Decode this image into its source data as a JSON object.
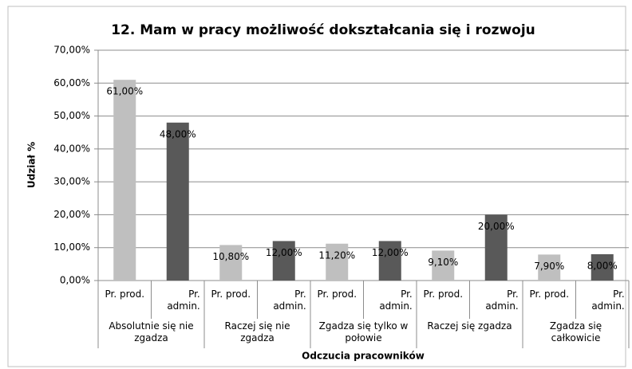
{
  "chart_data": {
    "type": "bar",
    "title": "12. Mam w pracy możliwość dokształcania się i rozwoju",
    "x_label": "Odczucia pracowników",
    "y_label": "Udział %",
    "categories": [
      "Absolutnie się nie zgadza",
      "Raczej się nie zgadza",
      "Zgadza się tylko w połowie",
      "Raczej się zgadza",
      "Zgadza się całkowicie"
    ],
    "series": [
      {
        "name": "Pr. prod.",
        "color": "#bfbfbf",
        "values": [
          61,
          10.8,
          11.2,
          9.1,
          7.9
        ],
        "value_labels": [
          "61,00%",
          "10,80%",
          "11,20%",
          "9,10%",
          "7,90%"
        ]
      },
      {
        "name": "Pr. admin.",
        "color": "#595959",
        "values": [
          48,
          12,
          12,
          20,
          8
        ],
        "value_labels": [
          "48,00%",
          "12,00%",
          "12,00%",
          "20,00%",
          "8,00%"
        ]
      }
    ],
    "ylim": [
      0,
      70
    ],
    "yticks": [
      {
        "value": 0,
        "label": "0,00%"
      },
      {
        "value": 10,
        "label": "10,00%"
      },
      {
        "value": 20,
        "label": "20,00%"
      },
      {
        "value": 30,
        "label": "30,00%"
      },
      {
        "value": 40,
        "label": "40,00%"
      },
      {
        "value": 50,
        "label": "50,00%"
      },
      {
        "value": 60,
        "label": "60,00%"
      },
      {
        "value": 70,
        "label": "70,00%"
      }
    ],
    "grid": true
  }
}
